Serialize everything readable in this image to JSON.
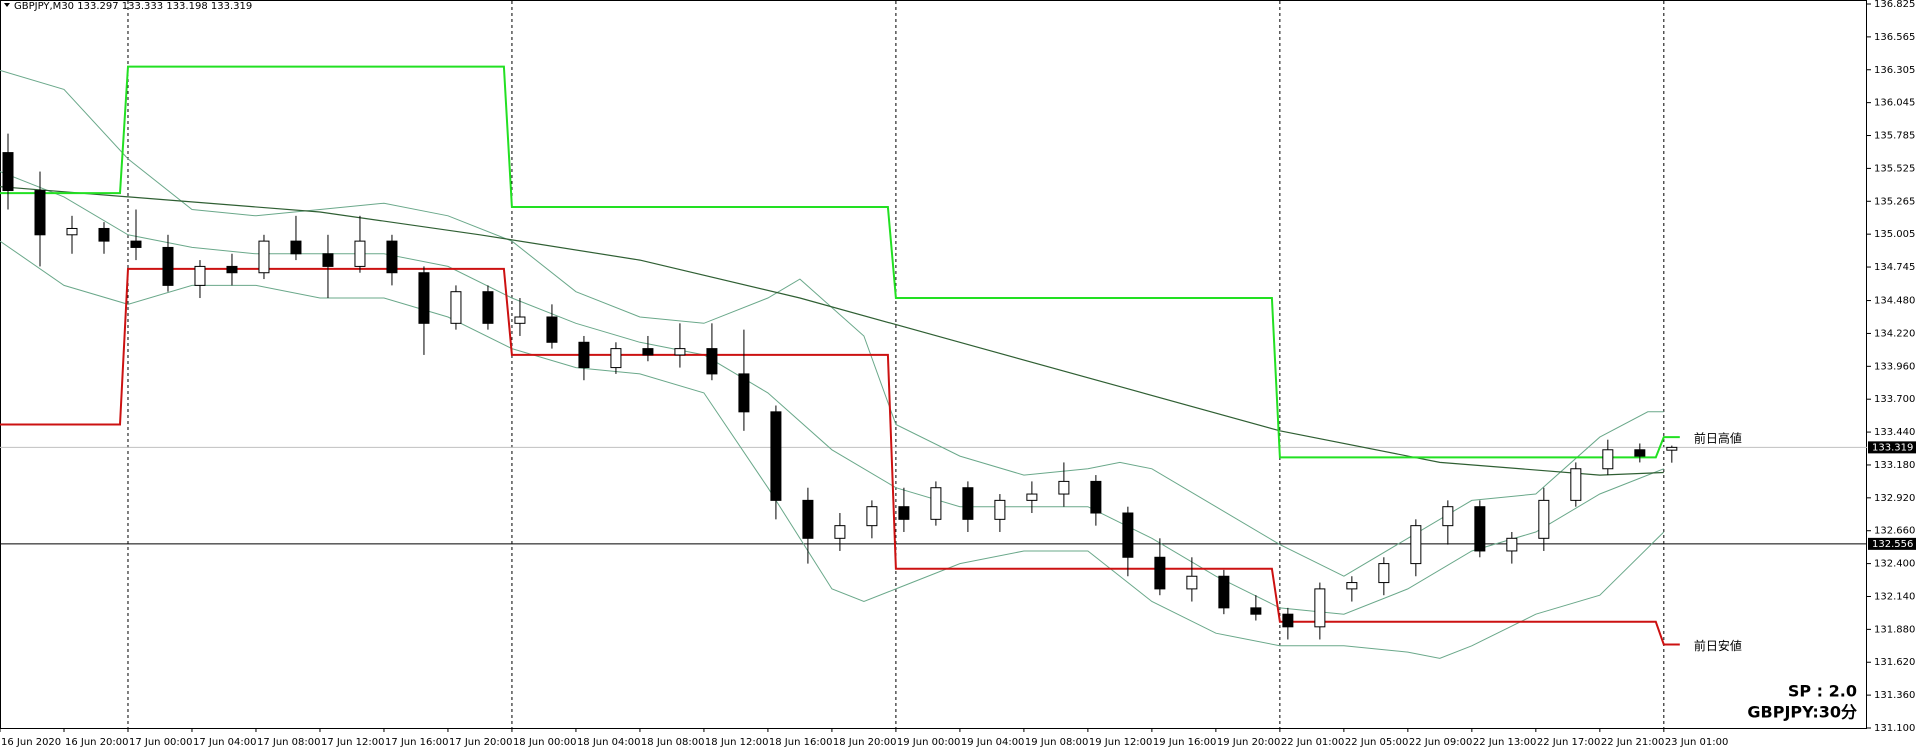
{
  "chart_data": {
    "type": "candlestick",
    "symbol": "GBPJPY,M30",
    "info": [
      "SP : 2.0",
      "GBPJPY:30分"
    ],
    "xlim": [
      0,
      116.7
    ],
    "ylim": [
      131.1,
      136.825
    ],
    "yticks": [
      136.825,
      136.565,
      136.305,
      136.045,
      135.785,
      135.525,
      135.265,
      135.005,
      134.745,
      {
        "value": 134.48,
        "label": "134.480"
      },
      {
        "value": 134.22,
        "label": "134.220"
      },
      {
        "value": 133.96,
        "label": "133.960"
      },
      {
        "value": 133.7,
        "label": "133.700"
      },
      {
        "value": 133.44,
        "label": "133.440"
      },
      {
        "value": 133.18,
        "label": "133.180"
      },
      {
        "value": 132.92,
        "label": "132.920"
      },
      {
        "value": 132.66,
        "label": "132.660"
      },
      {
        "value": 132.4,
        "label": "132.400"
      },
      {
        "value": 132.14,
        "label": "132.140"
      },
      {
        "value": 131.88,
        "label": "131.880"
      },
      {
        "value": 131.62,
        "label": "131.620"
      },
      {
        "value": 131.36,
        "label": "131.360"
      },
      {
        "value": 131.1,
        "label": "131.100"
      }
    ],
    "xticks": [
      {
        "value": 0,
        "label": "16 Jun 2020"
      },
      {
        "value": 4,
        "label": "16 Jun 20:00"
      },
      {
        "value": 8,
        "label": "17 Jun 00:00"
      },
      {
        "value": 12,
        "label": "17 Jun 04:00"
      },
      {
        "value": 16,
        "label": "17 Jun 08:00"
      },
      {
        "value": 20,
        "label": "17 Jun 12:00"
      },
      {
        "value": 24,
        "label": "17 Jun 16:00"
      },
      {
        "value": 28,
        "label": "17 Jun 20:00"
      },
      {
        "value": 32,
        "label": "18 Jun 00:00"
      },
      {
        "value": 36,
        "label": "18 Jun 04:00"
      },
      {
        "value": 40,
        "label": "18 Jun 08:00"
      },
      {
        "value": 44,
        "label": "18 Jun 12:00"
      },
      {
        "value": 48,
        "label": "18 Jun 16:00"
      },
      {
        "value": 52,
        "label": "18 Jun 20:00"
      },
      {
        "value": 56,
        "label": "19 Jun 00:00"
      },
      {
        "value": 60,
        "label": "19 Jun 04:00"
      },
      {
        "value": 64,
        "label": "19 Jun 08:00"
      },
      {
        "value": 68,
        "label": "19 Jun 12:00"
      },
      {
        "value": 72,
        "label": "19 Jun 16:00"
      },
      {
        "value": 76,
        "label": "19 Jun 20:00"
      },
      {
        "value": 80,
        "label": "22 Jun 01:00"
      },
      {
        "value": 84,
        "label": "22 Jun 05:00"
      },
      {
        "value": 88,
        "label": "22 Jun 09:00"
      },
      {
        "value": 92,
        "label": "22 Jun 13:00"
      },
      {
        "value": 96,
        "label": "22 Jun 17:00"
      },
      {
        "value": 100,
        "label": "22 Jun 21:00"
      },
      {
        "value": 104,
        "label": "23 Jun 01:00"
      }
    ],
    "separators": [
      8,
      32,
      56,
      80,
      104
    ],
    "x": [
      0,
      2,
      4,
      6,
      8,
      10,
      12,
      14,
      16,
      18,
      20,
      22,
      24,
      26,
      28,
      30,
      32,
      34,
      36,
      38,
      40,
      42,
      44,
      46,
      48,
      50,
      52,
      54,
      56,
      58,
      60,
      62,
      64,
      66,
      68,
      70,
      72,
      74,
      76,
      78,
      80,
      82,
      84,
      86,
      88,
      90,
      92,
      94,
      96,
      98,
      100,
      102,
      104
    ],
    "open": [
      135.65,
      135.35,
      135.0,
      135.05,
      134.95,
      134.9,
      134.6,
      134.75,
      134.7,
      134.95,
      134.85,
      134.75,
      134.95,
      134.7,
      134.3,
      134.55,
      134.3,
      134.35,
      134.15,
      133.95,
      134.1,
      134.05,
      134.1,
      133.9,
      133.6,
      132.9,
      132.6,
      132.7,
      132.85,
      132.75,
      133.0,
      132.75,
      132.9,
      132.95,
      133.05,
      132.8,
      132.45,
      132.2,
      132.3,
      132.05,
      132.0,
      131.9,
      132.2,
      132.25,
      132.4,
      132.7,
      132.85,
      132.5,
      132.6,
      132.9,
      133.15,
      133.3,
      133.297
    ],
    "high": [
      135.8,
      135.5,
      135.15,
      135.1,
      135.2,
      135.0,
      134.8,
      134.85,
      135.0,
      135.15,
      135.0,
      135.15,
      135.0,
      134.75,
      134.6,
      134.6,
      134.5,
      134.45,
      134.2,
      134.15,
      134.2,
      134.3,
      134.3,
      134.25,
      133.65,
      133.0,
      132.8,
      132.9,
      133.0,
      133.05,
      133.05,
      132.95,
      133.05,
      133.2,
      133.1,
      132.85,
      132.6,
      132.45,
      132.35,
      132.15,
      132.05,
      132.25,
      132.3,
      132.45,
      132.75,
      132.9,
      132.9,
      132.65,
      133.0,
      133.2,
      133.38,
      133.35,
      133.333
    ],
    "low": [
      135.2,
      134.75,
      134.85,
      134.85,
      134.8,
      134.55,
      134.5,
      134.6,
      134.65,
      134.8,
      134.5,
      134.7,
      134.6,
      134.05,
      134.25,
      134.25,
      134.2,
      134.1,
      133.85,
      133.9,
      134.0,
      133.95,
      133.85,
      133.45,
      132.75,
      132.4,
      132.5,
      132.6,
      132.65,
      132.7,
      132.65,
      132.65,
      132.8,
      132.85,
      132.7,
      132.3,
      132.15,
      132.1,
      132.0,
      131.95,
      131.8,
      131.8,
      132.1,
      132.15,
      132.3,
      132.55,
      132.45,
      132.4,
      132.5,
      132.85,
      133.1,
      133.2,
      133.198
    ],
    "close": [
      135.35,
      135.0,
      135.05,
      134.95,
      134.9,
      134.6,
      134.75,
      134.7,
      134.95,
      134.85,
      134.75,
      134.95,
      134.7,
      134.3,
      134.55,
      134.3,
      134.35,
      134.15,
      133.95,
      134.1,
      134.05,
      134.1,
      133.9,
      133.6,
      132.9,
      132.6,
      132.7,
      132.85,
      132.75,
      133.0,
      132.75,
      132.9,
      132.95,
      133.05,
      132.8,
      132.45,
      132.2,
      132.3,
      132.05,
      132.0,
      131.9,
      132.2,
      132.25,
      132.4,
      132.7,
      132.85,
      132.5,
      132.6,
      132.9,
      133.15,
      133.3,
      133.25,
      133.319
    ],
    "hline": 132.556,
    "overlays": [
      {
        "color": "#6aa88a",
        "width": 1,
        "x": [
          0,
          4,
          8,
          12,
          16,
          20,
          24,
          28,
          32,
          36,
          40,
          44,
          48,
          50,
          54,
          56,
          60,
          64,
          68,
          70,
          72,
          76,
          80,
          84,
          88,
          92,
          96,
          100,
          103,
          104
        ],
        "values": [
          136.3,
          136.15,
          135.6,
          135.2,
          135.15,
          135.2,
          135.25,
          135.15,
          134.95,
          134.55,
          134.35,
          134.3,
          134.5,
          134.65,
          134.2,
          133.5,
          133.25,
          133.1,
          133.15,
          133.2,
          133.15,
          132.85,
          132.55,
          132.3,
          132.6,
          132.9,
          132.95,
          133.4,
          133.6,
          133.6
        ]
      },
      {
        "color": "#6aa88a",
        "width": 1,
        "x": [
          0,
          4,
          8,
          12,
          16,
          20,
          24,
          28,
          32,
          36,
          40,
          44,
          48,
          52,
          56,
          60,
          64,
          68,
          72,
          76,
          80,
          84,
          88,
          92,
          96,
          100,
          104
        ],
        "values": [
          135.5,
          135.3,
          135.0,
          134.9,
          134.85,
          134.85,
          134.85,
          134.75,
          134.5,
          134.3,
          134.15,
          134.05,
          133.75,
          133.3,
          133.0,
          132.85,
          132.85,
          132.85,
          132.6,
          132.3,
          132.05,
          132.0,
          132.2,
          132.5,
          132.65,
          132.95,
          133.15
        ]
      },
      {
        "color": "#6aa88a",
        "width": 1,
        "x": [
          0,
          4,
          8,
          12,
          16,
          20,
          24,
          28,
          32,
          36,
          40,
          44,
          48,
          52,
          54,
          56,
          60,
          64,
          68,
          72,
          76,
          80,
          84,
          88,
          90,
          92,
          96,
          100,
          104
        ],
        "values": [
          134.95,
          134.6,
          134.45,
          134.6,
          134.6,
          134.5,
          134.5,
          134.35,
          134.1,
          133.95,
          133.9,
          133.75,
          133.0,
          132.2,
          132.1,
          132.2,
          132.4,
          132.5,
          132.5,
          132.1,
          131.85,
          131.75,
          131.75,
          131.7,
          131.65,
          131.75,
          132.0,
          132.15,
          132.65
        ]
      },
      {
        "color": "#2f5f33",
        "width": 1.2,
        "x": [
          0,
          10,
          20,
          30,
          40,
          50,
          60,
          70,
          80,
          90,
          100,
          104
        ],
        "values": [
          135.38,
          135.28,
          135.18,
          135.0,
          134.8,
          134.5,
          134.15,
          133.8,
          133.45,
          133.2,
          133.1,
          133.12
        ]
      },
      {
        "color": "#22e022",
        "width": 2,
        "x": [
          0,
          7.5,
          8,
          31.5,
          32,
          55.5,
          56,
          79.5,
          80,
          103.5,
          104,
          105
        ],
        "values": [
          135.33,
          135.33,
          136.33,
          136.33,
          135.22,
          135.22,
          134.5,
          134.5,
          133.24,
          133.24,
          133.4,
          133.4
        ]
      },
      {
        "color": "#cc1111",
        "width": 2,
        "x": [
          0,
          7.5,
          8,
          31.5,
          32,
          55.5,
          56,
          79.5,
          80,
          103.5,
          104,
          105
        ],
        "values": [
          133.5,
          133.5,
          134.73,
          134.73,
          134.05,
          134.05,
          132.36,
          132.36,
          131.94,
          131.94,
          131.76,
          131.76
        ]
      }
    ],
    "annotations": [
      {
        "text": "前日高値",
        "color": "#22c822",
        "overlay": 4
      },
      {
        "text": "前日安値",
        "color": "#cc1111",
        "overlay": 5
      }
    ]
  }
}
